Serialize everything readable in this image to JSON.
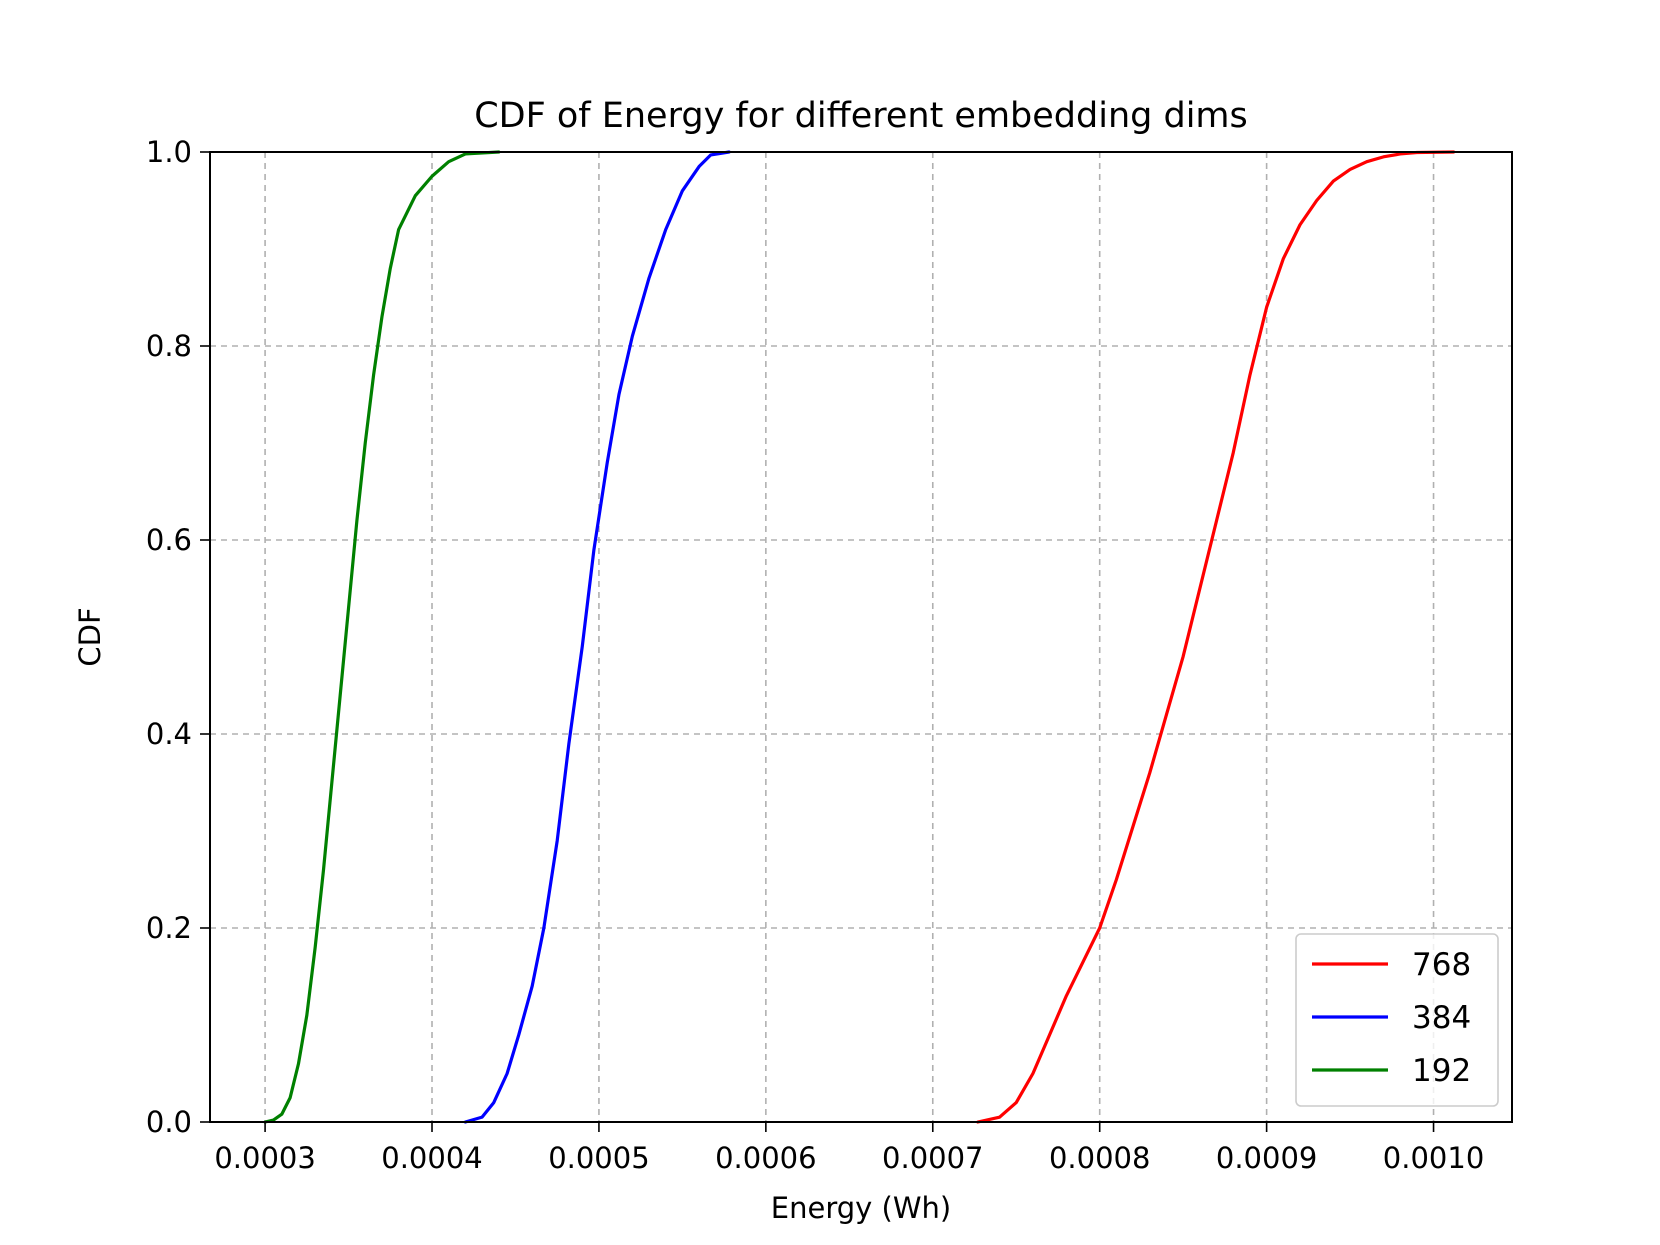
{
  "chart_data": {
    "type": "line",
    "title": "CDF of Energy for different embedding dims",
    "xlabel": "Energy (Wh)",
    "ylabel": "CDF",
    "xlim": [
      0.000267,
      0.001047
    ],
    "ylim": [
      0.0,
      1.0
    ],
    "grid": true,
    "legend_position": "bottom-right",
    "x_ticks": [
      0.0003,
      0.0004,
      0.0005,
      0.0006,
      0.0007,
      0.0008,
      0.0009,
      0.001
    ],
    "x_tick_labels": [
      "0.0003",
      "0.0004",
      "0.0005",
      "0.0006",
      "0.0007",
      "0.0008",
      "0.0009",
      "0.0010"
    ],
    "y_ticks": [
      0.0,
      0.2,
      0.4,
      0.6,
      0.8,
      1.0
    ],
    "y_tick_labels": [
      "0.0",
      "0.2",
      "0.4",
      "0.6",
      "0.8",
      "1.0"
    ],
    "series": [
      {
        "name": "768",
        "color": "#ff0000",
        "points": [
          [
            0.000727,
            0.0
          ],
          [
            0.00074,
            0.005
          ],
          [
            0.00075,
            0.02
          ],
          [
            0.00076,
            0.05
          ],
          [
            0.00077,
            0.09
          ],
          [
            0.00078,
            0.13
          ],
          [
            0.00079,
            0.165
          ],
          [
            0.0008,
            0.2
          ],
          [
            0.00081,
            0.25
          ],
          [
            0.00082,
            0.305
          ],
          [
            0.00083,
            0.36
          ],
          [
            0.00084,
            0.42
          ],
          [
            0.00085,
            0.48
          ],
          [
            0.00086,
            0.55
          ],
          [
            0.00087,
            0.62
          ],
          [
            0.00088,
            0.69
          ],
          [
            0.00089,
            0.77
          ],
          [
            0.0009,
            0.84
          ],
          [
            0.00091,
            0.89
          ],
          [
            0.00092,
            0.925
          ],
          [
            0.00093,
            0.95
          ],
          [
            0.00094,
            0.97
          ],
          [
            0.00095,
            0.982
          ],
          [
            0.00096,
            0.99
          ],
          [
            0.00097,
            0.995
          ],
          [
            0.00098,
            0.998
          ],
          [
            0.00099,
            0.9995
          ],
          [
            0.001012,
            1.0
          ]
        ]
      },
      {
        "name": "384",
        "color": "#0000ff",
        "points": [
          [
            0.00042,
            0.0
          ],
          [
            0.00043,
            0.005
          ],
          [
            0.000437,
            0.02
          ],
          [
            0.000445,
            0.05
          ],
          [
            0.000452,
            0.09
          ],
          [
            0.00046,
            0.14
          ],
          [
            0.000467,
            0.2
          ],
          [
            0.000475,
            0.29
          ],
          [
            0.000482,
            0.39
          ],
          [
            0.00049,
            0.49
          ],
          [
            0.000497,
            0.59
          ],
          [
            0.000505,
            0.68
          ],
          [
            0.000512,
            0.75
          ],
          [
            0.00052,
            0.81
          ],
          [
            0.00053,
            0.87
          ],
          [
            0.00054,
            0.92
          ],
          [
            0.00055,
            0.96
          ],
          [
            0.00056,
            0.985
          ],
          [
            0.000567,
            0.997
          ],
          [
            0.000578,
            1.0
          ]
        ]
      },
      {
        "name": "192",
        "color": "#008000",
        "points": [
          [
            0.0003,
            0.0
          ],
          [
            0.000305,
            0.002
          ],
          [
            0.00031,
            0.008
          ],
          [
            0.000315,
            0.025
          ],
          [
            0.00032,
            0.06
          ],
          [
            0.000325,
            0.11
          ],
          [
            0.00033,
            0.18
          ],
          [
            0.000335,
            0.26
          ],
          [
            0.00034,
            0.35
          ],
          [
            0.000345,
            0.44
          ],
          [
            0.00035,
            0.53
          ],
          [
            0.000355,
            0.62
          ],
          [
            0.00036,
            0.7
          ],
          [
            0.000365,
            0.77
          ],
          [
            0.00037,
            0.83
          ],
          [
            0.000375,
            0.88
          ],
          [
            0.00038,
            0.92
          ],
          [
            0.00039,
            0.955
          ],
          [
            0.0004,
            0.975
          ],
          [
            0.00041,
            0.99
          ],
          [
            0.00042,
            0.998
          ],
          [
            0.00044,
            1.0
          ]
        ]
      }
    ]
  }
}
